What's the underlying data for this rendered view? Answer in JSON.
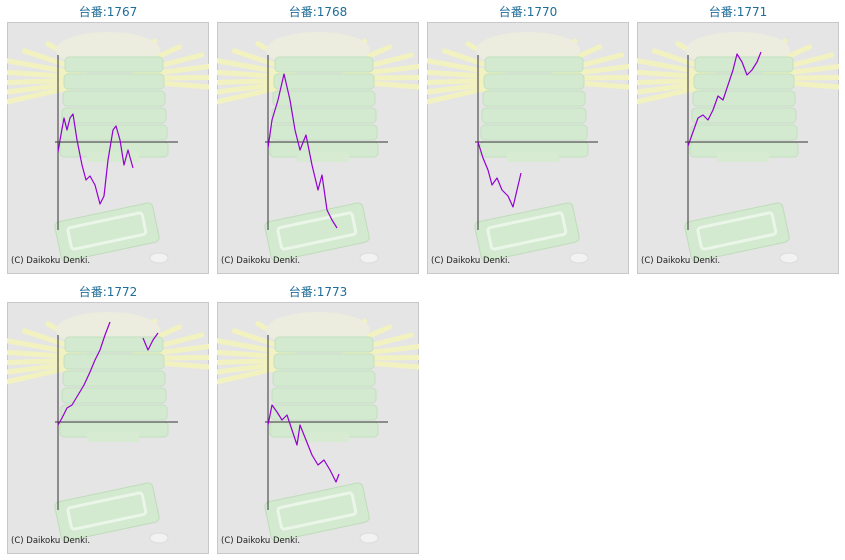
{
  "chart_data": [
    {
      "type": "line",
      "title": "台番:1767",
      "annotation": "(C) Daikoku Denki.",
      "color": "#9400d3",
      "xlim": [
        0,
        120
      ],
      "ylim": [
        -88,
        120
      ],
      "x": [
        0,
        2,
        6,
        9,
        12,
        15,
        19,
        24,
        28,
        32,
        37,
        42,
        46,
        50,
        55,
        58,
        62,
        66,
        70,
        75
      ],
      "values": [
        -10,
        2,
        24,
        12,
        24,
        28,
        2,
        -23,
        -38,
        -34,
        -43,
        -62,
        -54,
        -18,
        12,
        16,
        2,
        -23,
        -8,
        -26
      ]
    },
    {
      "type": "line",
      "title": "台番:1768",
      "annotation": "(C) Daikoku Denki.",
      "color": "#9400d3",
      "xlim": [
        0,
        120
      ],
      "ylim": [
        -88,
        120
      ],
      "x": [
        0,
        4,
        10,
        16,
        22,
        27,
        32,
        38,
        44,
        50,
        54,
        59,
        64,
        69
      ],
      "values": [
        -6,
        22,
        42,
        68,
        42,
        12,
        -8,
        7,
        -23,
        -48,
        -33,
        -68,
        -78,
        -86
      ]
    },
    {
      "type": "line",
      "title": "台番:1770",
      "annotation": "(C) Daikoku Denki.",
      "color": "#9400d3",
      "xlim": [
        0,
        120
      ],
      "ylim": [
        -88,
        120
      ],
      "x": [
        0,
        5,
        10,
        14,
        19,
        24,
        30,
        35,
        39,
        43
      ],
      "values": [
        0,
        -16,
        -28,
        -43,
        -36,
        -48,
        -54,
        -65,
        -48,
        -31
      ]
    },
    {
      "type": "line",
      "title": "台番:1771",
      "annotation": "(C) Daikoku Denki.",
      "color": "#9400d3",
      "xlim": [
        0,
        120
      ],
      "ylim": [
        -88,
        120
      ],
      "x": [
        0,
        5,
        10,
        15,
        20,
        25,
        30,
        35,
        40,
        45,
        49,
        54,
        59,
        64,
        69,
        73
      ],
      "values": [
        -4,
        10,
        24,
        27,
        22,
        32,
        46,
        42,
        57,
        72,
        88,
        80,
        67,
        72,
        80,
        90
      ]
    },
    {
      "type": "line",
      "title": "台番:1772",
      "annotation": "(C) Daikoku Denki.",
      "color": "#9400d3",
      "xlim": [
        0,
        120
      ],
      "ylim": [
        -88,
        120
      ],
      "x": [
        0,
        4,
        9,
        14,
        20,
        26,
        32,
        37,
        42,
        47,
        52,
        68,
        85,
        90,
        95,
        100
      ],
      "values": [
        -3,
        4,
        14,
        17,
        27,
        37,
        50,
        62,
        72,
        87,
        100,
        null,
        84,
        72,
        82,
        89
      ]
    },
    {
      "type": "line",
      "title": "台番:1773",
      "annotation": "(C) Daikoku Denki.",
      "color": "#9400d3",
      "xlim": [
        0,
        120
      ],
      "ylim": [
        -88,
        120
      ],
      "x": [
        0,
        4,
        9,
        14,
        19,
        24,
        29,
        32,
        38,
        44,
        50,
        56,
        62,
        68,
        71
      ],
      "values": [
        -3,
        17,
        10,
        2,
        7,
        -8,
        -23,
        -3,
        -18,
        -33,
        -43,
        -38,
        -48,
        -60,
        -52
      ]
    }
  ]
}
